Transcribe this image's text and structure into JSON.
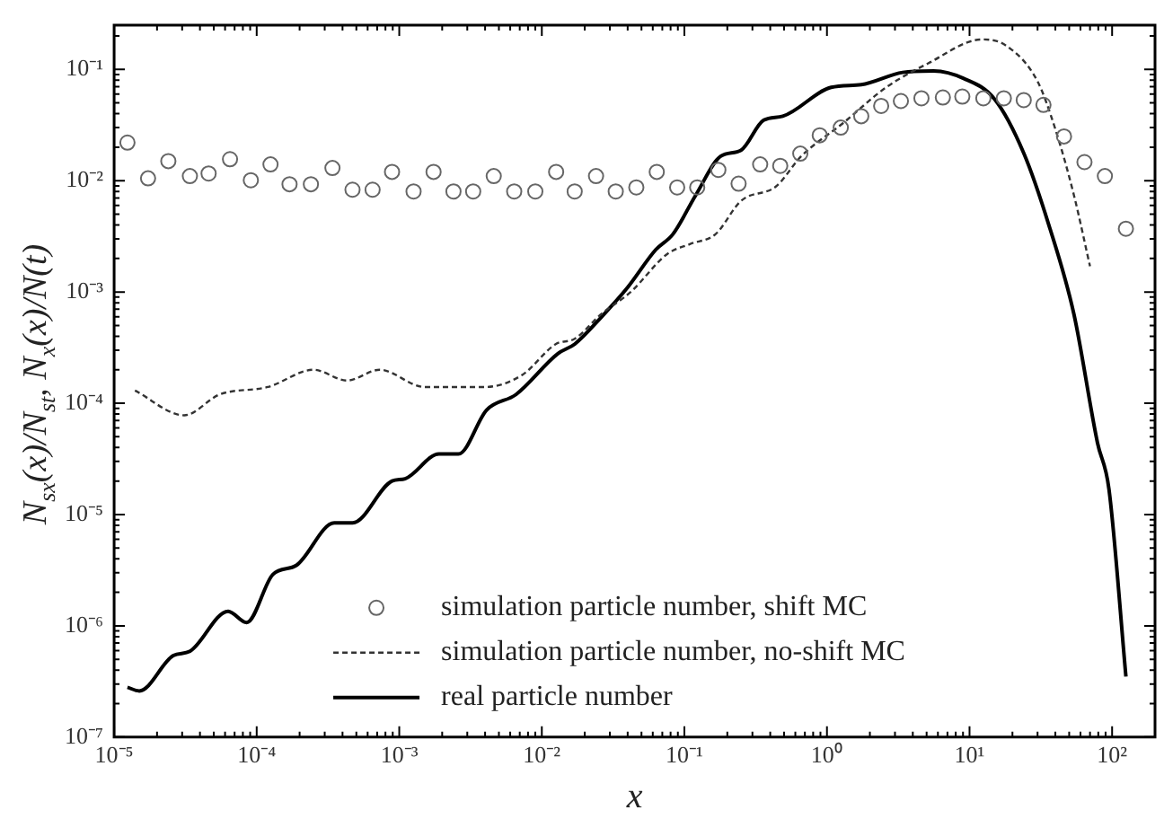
{
  "chart_data": {
    "type": "line",
    "xlabel": "x",
    "ylabel": "N$_{sx}$(x)/N$_{st}$, N$_{x}$(x)/N(t)",
    "log": "xy",
    "grid": false,
    "legend": "bottom",
    "xlim": [
      1e-05,
      200
    ],
    "xticks": [
      {
        "value": 1e-05,
        "label": "10⁻⁵"
      },
      {
        "value": 0.0001,
        "label": "10⁻⁴"
      },
      {
        "value": 0.001,
        "label": "10⁻³"
      },
      {
        "value": 0.01,
        "label": "10⁻²"
      },
      {
        "value": 0.1,
        "label": "10⁻¹"
      },
      {
        "value": 1,
        "label": "10⁰"
      },
      {
        "value": 10,
        "label": "10¹"
      },
      {
        "value": 100,
        "label": "10²"
      }
    ],
    "ylim": [
      1e-07,
      0.25
    ],
    "yticks": [
      {
        "value": 1e-07,
        "label": "10⁻⁷"
      },
      {
        "value": 1e-06,
        "label": "10⁻⁶"
      },
      {
        "value": 1e-05,
        "label": "10⁻⁵"
      },
      {
        "value": 0.0001,
        "label": "10⁻⁴"
      },
      {
        "value": 0.001,
        "label": "10⁻³"
      },
      {
        "value": 0.01,
        "label": "10⁻²"
      },
      {
        "value": 0.1,
        "label": "10⁻¹"
      }
    ],
    "series": [
      {
        "name": "simulation particle number, shift MC",
        "type": "scatter",
        "marker": "circle",
        "color": "#666666",
        "x": [
          1.24e-05,
          1.73e-05,
          2.4e-05,
          3.4e-05,
          4.6e-05,
          6.5e-05,
          9.1e-05,
          0.000125,
          0.00017,
          0.00024,
          0.00034,
          0.00047,
          0.00065,
          0.00089,
          0.00126,
          0.00174,
          0.0024,
          0.0033,
          0.0046,
          0.0064,
          0.009,
          0.0126,
          0.017,
          0.024,
          0.033,
          0.046,
          0.064,
          0.089,
          0.123,
          0.173,
          0.24,
          0.34,
          0.47,
          0.65,
          0.89,
          1.25,
          1.74,
          2.4,
          3.3,
          4.6,
          6.5,
          8.9,
          12.5,
          17.4,
          24,
          33,
          46,
          64,
          89,
          125
        ],
        "values": [
          0.022,
          0.0105,
          0.015,
          0.011,
          0.0116,
          0.0156,
          0.0101,
          0.014,
          0.0093,
          0.0093,
          0.013,
          0.0083,
          0.0083,
          0.012,
          0.008,
          0.012,
          0.008,
          0.008,
          0.011,
          0.008,
          0.008,
          0.012,
          0.008,
          0.011,
          0.008,
          0.0087,
          0.012,
          0.0087,
          0.0087,
          0.0125,
          0.0094,
          0.014,
          0.0136,
          0.0175,
          0.0256,
          0.03,
          0.038,
          0.047,
          0.052,
          0.055,
          0.056,
          0.057,
          0.055,
          0.055,
          0.053,
          0.048,
          0.025,
          0.0147,
          0.011,
          0.0037
        ]
      },
      {
        "name": "simulation particle number, no-shift MC",
        "type": "line",
        "marker": "none",
        "line_style": "dashed",
        "color": "#333333",
        "x": [
          1.4e-05,
          3.1e-05,
          5.5e-05,
          0.00012,
          0.00025,
          0.00043,
          0.00073,
          0.0015,
          0.004,
          0.0073,
          0.0125,
          0.017,
          0.026,
          0.042,
          0.076,
          0.11,
          0.165,
          0.25,
          0.44,
          0.66,
          1.3,
          2.6,
          5.1,
          12.3,
          18,
          30,
          40,
          54,
          70
        ],
        "values": [
          0.00013,
          7.8e-05,
          0.00012,
          0.00014,
          0.0002,
          0.00016,
          0.0002,
          0.00014,
          0.00014,
          0.00018,
          0.00034,
          0.00038,
          0.00063,
          0.001,
          0.0022,
          0.0027,
          0.0033,
          0.0066,
          0.0089,
          0.0166,
          0.033,
          0.069,
          0.113,
          0.186,
          0.164,
          0.078,
          0.029,
          0.0074,
          0.0017
        ]
      },
      {
        "name": "real particle number",
        "type": "line",
        "marker": "none",
        "line_style": "solid",
        "color": "#000000",
        "x": [
          1.24e-05,
          1.5e-05,
          2.6e-05,
          3.4e-05,
          6.3e-05,
          8.5e-05,
          0.00013,
          0.00019,
          0.00035,
          0.00047,
          0.00089,
          0.0011,
          0.0019,
          0.0026,
          0.0041,
          0.0066,
          0.013,
          0.017,
          0.026,
          0.04,
          0.063,
          0.083,
          0.12,
          0.18,
          0.25,
          0.36,
          0.49,
          1.07,
          1.74,
          3.4,
          5.6,
          9.1,
          15,
          24,
          36,
          54,
          79,
          95,
          125
        ],
        "values": [
          2.8e-07,
          2.6e-07,
          5.4e-07,
          5.9e-07,
          1.35e-06,
          1.07e-06,
          2.9e-06,
          3.5e-06,
          8.4e-06,
          8.4e-06,
          2e-05,
          2.1e-05,
          3.5e-05,
          3.5e-05,
          8.7e-05,
          0.00012,
          0.00028,
          0.00034,
          0.00059,
          0.0011,
          0.0024,
          0.0033,
          0.0074,
          0.0166,
          0.0188,
          0.035,
          0.038,
          0.069,
          0.073,
          0.094,
          0.097,
          0.083,
          0.054,
          0.0177,
          0.004,
          0.00063,
          4.4e-05,
          1.7e-05,
          3.5e-07
        ]
      }
    ]
  }
}
